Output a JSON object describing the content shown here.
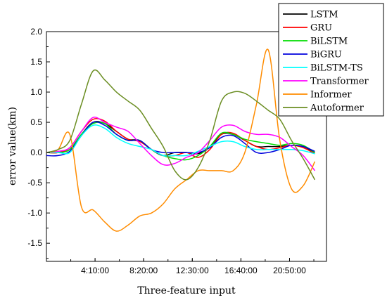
{
  "chart_data": {
    "type": "line",
    "title": "",
    "xlabel": "Three-feature input",
    "ylabel": "error value(km)",
    "xlim": [
      0,
      24
    ],
    "ylim": [
      -1.8,
      2.0
    ],
    "x_tick_values": [
      4.1667,
      8.3333,
      12.5,
      16.6667,
      20.8333
    ],
    "x_tick_labels": [
      "4:10:00",
      "8:20:00",
      "12:30:00",
      "16:40:00",
      "20:50:00"
    ],
    "y_ticks": [
      -1.5,
      -1.0,
      -0.5,
      0.0,
      0.5,
      1.0,
      1.5,
      2.0
    ],
    "y_tick_labels": [
      "-1.5",
      "-1.0",
      "-0.5",
      "0.0",
      "0.5",
      "1.0",
      "1.5",
      "2.0"
    ],
    "legend_position": "top-right",
    "x": [
      0,
      1,
      2,
      3,
      4,
      5,
      6,
      7,
      8,
      9,
      10,
      11,
      12,
      13,
      14,
      15,
      16,
      17,
      18,
      19,
      20,
      21,
      22,
      23
    ],
    "series": [
      {
        "name": "LSTM",
        "color": "#000000",
        "values": [
          0.0,
          0.0,
          0.05,
          0.3,
          0.5,
          0.48,
          0.35,
          0.22,
          0.2,
          0.05,
          -0.05,
          0.0,
          0.0,
          -0.02,
          0.1,
          0.3,
          0.3,
          0.2,
          0.1,
          0.1,
          0.1,
          0.12,
          0.1,
          0.0
        ]
      },
      {
        "name": "GRU",
        "color": "#ff0000",
        "values": [
          0.0,
          0.0,
          0.08,
          0.35,
          0.55,
          0.52,
          0.35,
          0.22,
          0.18,
          0.05,
          -0.05,
          -0.05,
          0.0,
          -0.08,
          0.05,
          0.3,
          0.32,
          0.2,
          0.1,
          0.05,
          0.08,
          0.12,
          0.08,
          -0.02
        ]
      },
      {
        "name": "BiLSTM",
        "color": "#00dd00",
        "values": [
          0.0,
          0.0,
          0.05,
          0.3,
          0.48,
          0.48,
          0.3,
          0.2,
          0.2,
          0.05,
          -0.05,
          -0.1,
          -0.12,
          -0.05,
          0.1,
          0.32,
          0.3,
          0.22,
          0.18,
          0.15,
          0.12,
          0.15,
          0.12,
          0.0
        ]
      },
      {
        "name": "BiGRU",
        "color": "#0000dd",
        "values": [
          -0.05,
          -0.05,
          0.02,
          0.28,
          0.5,
          0.45,
          0.3,
          0.2,
          0.2,
          0.05,
          0.0,
          0.0,
          0.0,
          0.0,
          0.08,
          0.25,
          0.28,
          0.15,
          0.0,
          0.0,
          0.05,
          0.12,
          0.1,
          0.02
        ]
      },
      {
        "name": "BiLSTM-TS",
        "color": "#00ffff",
        "values": [
          0.0,
          0.0,
          0.0,
          0.28,
          0.45,
          0.4,
          0.25,
          0.15,
          0.1,
          0.05,
          -0.05,
          -0.05,
          -0.05,
          0.02,
          0.1,
          0.18,
          0.18,
          0.1,
          0.05,
          0.05,
          0.05,
          0.05,
          0.03,
          -0.02
        ]
      },
      {
        "name": "Transformer",
        "color": "#ff00ff",
        "values": [
          0.0,
          0.02,
          0.08,
          0.35,
          0.58,
          0.5,
          0.42,
          0.35,
          0.15,
          -0.05,
          -0.2,
          -0.18,
          -0.08,
          0.0,
          0.2,
          0.42,
          0.45,
          0.35,
          0.3,
          0.3,
          0.25,
          0.1,
          -0.05,
          -0.3
        ]
      },
      {
        "name": "Informer",
        "color": "#ff8c00",
        "values": [
          0.0,
          0.05,
          0.3,
          -0.9,
          -0.95,
          -1.15,
          -1.3,
          -1.2,
          -1.05,
          -1.0,
          -0.85,
          -0.6,
          -0.45,
          -0.3,
          -0.3,
          -0.3,
          -0.3,
          0.0,
          0.8,
          1.7,
          0.2,
          -0.6,
          -0.55,
          -0.15
        ]
      },
      {
        "name": "Autoformer",
        "color": "#6b8e23",
        "values": [
          0.0,
          0.05,
          0.2,
          0.8,
          1.35,
          1.2,
          1.0,
          0.85,
          0.7,
          0.4,
          0.1,
          -0.3,
          -0.45,
          -0.25,
          0.2,
          0.85,
          1.0,
          0.98,
          0.85,
          0.7,
          0.55,
          0.2,
          -0.1,
          -0.45
        ]
      }
    ]
  }
}
